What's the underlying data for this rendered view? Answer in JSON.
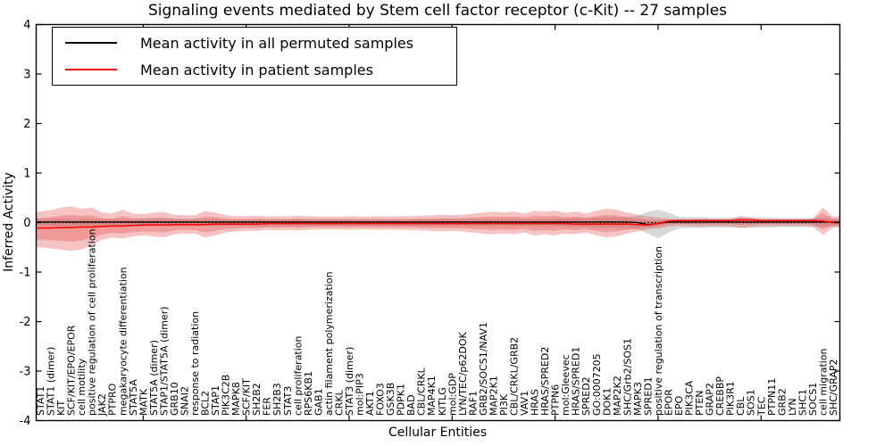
{
  "chart_data": {
    "type": "line",
    "title": "Signaling events mediated by Stem cell factor receptor (c-Kit) -- 27 samples",
    "xlabel": "Cellular Entities",
    "ylabel": "Inferred Activity",
    "ylim": [
      -4,
      4
    ],
    "yticks": [
      -4,
      -3,
      -2,
      -1,
      0,
      1,
      2,
      3,
      4
    ],
    "grid": false,
    "legend_position": "upper left",
    "legend": [
      {
        "label": "Mean activity in all permuted samples",
        "color": "#000000"
      },
      {
        "label": "Mean activity in patient samples",
        "color": "#ff0000"
      }
    ],
    "colors": {
      "patient_line": "#ff0000",
      "permuted_line": "#000000",
      "zero_line": "#000000",
      "patient_band": "#e34444",
      "permuted_band": "#999999"
    },
    "inner_band_scale": 0.6,
    "categories": [
      "STAT1",
      "STAT1 (dimer)",
      "KIT",
      "SCF/KIT/EPO/EPOR",
      "cell motility",
      "positive regulation of cell proliferation",
      "JAK2",
      "PTPRO",
      "megakaryocyte differentiation",
      "STAT5A",
      "MATK",
      "STAT5A (dimer)",
      "STAP1/STAT5A (dimer)",
      "GRB10",
      "SNAI2",
      "response to radiation",
      "BCL2",
      "STAP1",
      "PIK3C2B",
      "MAPK8",
      "SCF/KIT",
      "SH2B2",
      "FER",
      "SH2B3",
      "STAT3",
      "cell proliferation",
      "RPS6KB1",
      "GAB1",
      "actin filament polymerization",
      "CRKL",
      "STAT3 (dimer)",
      "mol:PIP3",
      "AKT1",
      "FOXO3",
      "GSK3B",
      "PDPK1",
      "BAD",
      "CBL/CRKL",
      "MAP4K1",
      "KITLG",
      "mol:GDP",
      "LYN/TEC/p62DOK",
      "RAF1",
      "GRB2/SOCS1/NAV1",
      "MAP2K1",
      "PI3K",
      "CBL/CRKL/GRB2",
      "VAV1",
      "HRAS",
      "HRAS/SPRED2",
      "PTPN6",
      "mol:Gleevec",
      "HRAS/SPRED1",
      "SPRED2",
      "GO:0007205",
      "DOK1",
      "MAP2K2",
      "SHC/Grb2/SOS1",
      "MAPK3",
      "SPRED1",
      "positive regulation of transcription",
      "EPOR",
      "EPO",
      "PIK3CA",
      "PTEN",
      "GRAP2",
      "CREBBP",
      "PIK3R1",
      "CBL",
      "SOS1",
      "TEC",
      "PTPN11",
      "GRB2",
      "LYN",
      "SHC1",
      "SOCS1",
      "cell migration",
      "SHC/GRAP2"
    ],
    "series": [
      {
        "name": "Mean activity in all permuted samples",
        "values": [
          0.01,
          0.01,
          0.01,
          0.01,
          0.01,
          0.01,
          0.01,
          0.01,
          0.01,
          0.01,
          0.01,
          0.01,
          0.01,
          0.01,
          0.01,
          0.01,
          0.01,
          0.01,
          0.01,
          0.01,
          0.01,
          0.01,
          0.01,
          0.01,
          0.01,
          0.01,
          0.01,
          0.01,
          0.01,
          0.01,
          0.01,
          0.01,
          0.01,
          0.01,
          0.01,
          0.01,
          0.01,
          0.01,
          0.01,
          0.01,
          0.01,
          0.01,
          0.01,
          0.01,
          0.01,
          0.01,
          0.01,
          0.01,
          0.01,
          0.01,
          0.01,
          0.01,
          0.01,
          0.01,
          0.01,
          0.01,
          0.01,
          0.01,
          0.0,
          -0.04,
          -0.02,
          0.01,
          0.01,
          0.01,
          0.01,
          0.01,
          0.01,
          0.01,
          0.01,
          0.01,
          0.01,
          0.01,
          0.01,
          0.01,
          0.01,
          0.01,
          0.01,
          0.01
        ]
      },
      {
        "name": "Mean activity in patient samples",
        "values": [
          -0.11,
          -0.11,
          -0.1,
          -0.1,
          -0.09,
          -0.09,
          -0.08,
          -0.07,
          -0.07,
          -0.06,
          -0.05,
          -0.05,
          -0.05,
          -0.04,
          -0.04,
          -0.04,
          -0.04,
          -0.03,
          -0.03,
          -0.03,
          -0.03,
          -0.03,
          -0.02,
          -0.02,
          -0.02,
          -0.02,
          -0.02,
          -0.02,
          -0.02,
          -0.02,
          -0.02,
          -0.02,
          -0.02,
          -0.02,
          -0.02,
          -0.02,
          -0.02,
          -0.02,
          -0.02,
          -0.02,
          -0.02,
          -0.02,
          -0.02,
          -0.02,
          -0.02,
          -0.02,
          -0.02,
          -0.02,
          -0.02,
          -0.02,
          -0.02,
          -0.02,
          -0.03,
          -0.03,
          -0.03,
          -0.03,
          -0.03,
          -0.03,
          -0.04,
          -0.05,
          -0.02,
          0.03,
          0.04,
          0.04,
          0.04,
          0.04,
          0.04,
          0.04,
          0.05,
          0.05,
          0.04,
          0.04,
          0.04,
          0.04,
          0.04,
          0.04,
          0.03,
          0.0
        ]
      }
    ],
    "patient_band_upper": [
      0.22,
      0.25,
      0.3,
      0.33,
      0.28,
      0.3,
      0.2,
      0.18,
      0.26,
      0.18,
      0.17,
      0.2,
      0.21,
      0.16,
      0.15,
      0.15,
      0.23,
      0.2,
      0.15,
      0.13,
      0.13,
      0.14,
      0.12,
      0.13,
      0.12,
      0.14,
      0.13,
      0.12,
      0.12,
      0.12,
      0.13,
      0.12,
      0.12,
      0.13,
      0.12,
      0.13,
      0.13,
      0.14,
      0.15,
      0.16,
      0.15,
      0.16,
      0.18,
      0.2,
      0.22,
      0.2,
      0.22,
      0.18,
      0.24,
      0.22,
      0.24,
      0.2,
      0.22,
      0.18,
      0.24,
      0.28,
      0.26,
      0.2,
      0.16,
      0.12,
      0.1,
      0.08,
      0.07,
      0.07,
      0.08,
      0.07,
      0.07,
      0.07,
      0.13,
      0.1,
      0.07,
      0.07,
      0.07,
      0.07,
      0.07,
      0.08,
      0.3,
      0.12
    ],
    "patient_band_lower": [
      -0.5,
      -0.52,
      -0.55,
      -0.57,
      -0.55,
      -0.45,
      -0.35,
      -0.3,
      -0.33,
      -0.28,
      -0.26,
      -0.28,
      -0.3,
      -0.24,
      -0.22,
      -0.22,
      -0.3,
      -0.26,
      -0.2,
      -0.18,
      -0.17,
      -0.17,
      -0.15,
      -0.16,
      -0.15,
      -0.16,
      -0.15,
      -0.14,
      -0.14,
      -0.14,
      -0.15,
      -0.14,
      -0.14,
      -0.15,
      -0.14,
      -0.15,
      -0.15,
      -0.16,
      -0.17,
      -0.18,
      -0.17,
      -0.18,
      -0.2,
      -0.22,
      -0.24,
      -0.22,
      -0.24,
      -0.2,
      -0.26,
      -0.24,
      -0.26,
      -0.22,
      -0.24,
      -0.2,
      -0.26,
      -0.3,
      -0.28,
      -0.22,
      -0.18,
      -0.13,
      -0.12,
      -0.08,
      -0.07,
      -0.07,
      -0.08,
      -0.07,
      -0.07,
      -0.07,
      -0.11,
      -0.09,
      -0.07,
      -0.07,
      -0.07,
      -0.07,
      -0.07,
      -0.08,
      -0.25,
      -0.1
    ],
    "permuted_band_upper": [
      0.07,
      0.07,
      0.07,
      0.07,
      0.07,
      0.07,
      0.07,
      0.07,
      0.07,
      0.07,
      0.07,
      0.07,
      0.07,
      0.07,
      0.07,
      0.07,
      0.07,
      0.07,
      0.07,
      0.07,
      0.07,
      0.07,
      0.07,
      0.07,
      0.07,
      0.07,
      0.07,
      0.07,
      0.07,
      0.07,
      0.07,
      0.07,
      0.07,
      0.07,
      0.07,
      0.07,
      0.07,
      0.07,
      0.07,
      0.07,
      0.07,
      0.07,
      0.07,
      0.07,
      0.07,
      0.07,
      0.07,
      0.07,
      0.07,
      0.07,
      0.08,
      0.08,
      0.09,
      0.09,
      0.1,
      0.1,
      0.1,
      0.11,
      0.14,
      0.22,
      0.26,
      0.2,
      0.12,
      0.11,
      0.11,
      0.1,
      0.1,
      0.1,
      0.1,
      0.1,
      0.1,
      0.1,
      0.09,
      0.09,
      0.09,
      0.09,
      0.09,
      0.08
    ],
    "permuted_band_lower": [
      -0.07,
      -0.07,
      -0.07,
      -0.07,
      -0.07,
      -0.07,
      -0.07,
      -0.07,
      -0.07,
      -0.07,
      -0.07,
      -0.07,
      -0.07,
      -0.07,
      -0.07,
      -0.07,
      -0.07,
      -0.07,
      -0.07,
      -0.07,
      -0.07,
      -0.07,
      -0.07,
      -0.07,
      -0.07,
      -0.07,
      -0.07,
      -0.07,
      -0.07,
      -0.07,
      -0.07,
      -0.07,
      -0.07,
      -0.07,
      -0.07,
      -0.07,
      -0.07,
      -0.07,
      -0.07,
      -0.07,
      -0.07,
      -0.07,
      -0.07,
      -0.07,
      -0.07,
      -0.07,
      -0.07,
      -0.07,
      -0.07,
      -0.07,
      -0.08,
      -0.08,
      -0.09,
      -0.09,
      -0.1,
      -0.1,
      -0.1,
      -0.11,
      -0.14,
      -0.22,
      -0.32,
      -0.2,
      -0.12,
      -0.11,
      -0.11,
      -0.1,
      -0.1,
      -0.1,
      -0.1,
      -0.1,
      -0.1,
      -0.1,
      -0.09,
      -0.09,
      -0.09,
      -0.09,
      -0.09,
      -0.08
    ]
  }
}
